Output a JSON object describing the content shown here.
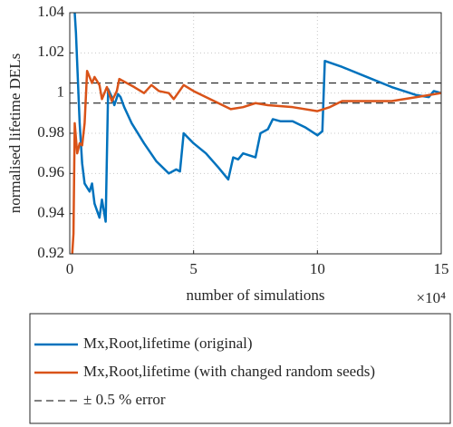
{
  "chart_data": {
    "type": "line",
    "xlabel": "number of simulations",
    "x_scale_label": "×10⁴",
    "ylabel": "normalised lifetime DELs",
    "xlim": [
      0,
      15
    ],
    "xticks": [
      0,
      5,
      10,
      15
    ],
    "ylim": [
      0.92,
      1.04
    ],
    "yticks": [
      0.92,
      0.94,
      0.96,
      0.98,
      1,
      1.02,
      1.04
    ],
    "grid": true,
    "legend": "below",
    "series": [
      {
        "name": "Mx,Root,lifetime (original)",
        "color": "#0072bd",
        "x": [
          0.2,
          0.25,
          0.4,
          0.5,
          0.6,
          0.8,
          0.9,
          1.0,
          1.2,
          1.3,
          1.45,
          1.55,
          1.7,
          1.8,
          1.95,
          2.05,
          2.2,
          2.5,
          3,
          3.5,
          4,
          4.3,
          4.45,
          4.6,
          5,
          5.5,
          6,
          6.4,
          6.6,
          6.8,
          7,
          7.5,
          7.7,
          8,
          8.2,
          8.5,
          9,
          9.5,
          10,
          10.2,
          10.3,
          11,
          12,
          13,
          14,
          14.5,
          14.7,
          15
        ],
        "values": [
          1.04,
          1.03,
          0.985,
          0.965,
          0.955,
          0.951,
          0.955,
          0.945,
          0.938,
          0.947,
          0.936,
          1.002,
          0.998,
          0.994,
          0.9995,
          0.998,
          0.993,
          0.985,
          0.975,
          0.966,
          0.96,
          0.962,
          0.961,
          0.98,
          0.975,
          0.97,
          0.963,
          0.957,
          0.968,
          0.967,
          0.97,
          0.968,
          0.98,
          0.982,
          0.987,
          0.986,
          0.986,
          0.983,
          0.979,
          0.981,
          1.016,
          1.013,
          1.008,
          1.003,
          0.999,
          0.998,
          1.001,
          1.0
        ]
      },
      {
        "name": "Mx,Root,lifetime (with changed random seeds)",
        "color": "#d95319",
        "x": [
          0.1,
          0.15,
          0.2,
          0.3,
          0.4,
          0.5,
          0.6,
          0.7,
          0.9,
          1.0,
          1.2,
          1.3,
          1.5,
          1.7,
          1.9,
          2,
          2.3,
          2.6,
          3,
          3.3,
          3.6,
          4,
          4.2,
          4.6,
          5,
          5.5,
          6,
          6.5,
          7,
          7.5,
          8,
          9,
          10,
          10.5,
          11,
          12,
          13,
          14,
          15
        ],
        "values": [
          0.92,
          0.93,
          0.985,
          0.97,
          0.975,
          0.974,
          0.985,
          1.011,
          1.005,
          1.008,
          1.004,
          0.997,
          1.003,
          0.996,
          1.001,
          1.007,
          1.005,
          1.003,
          1.0,
          1.004,
          1.001,
          1.0,
          0.997,
          1.004,
          1.001,
          0.998,
          0.995,
          0.992,
          0.993,
          0.995,
          0.994,
          0.993,
          0.991,
          0.993,
          0.996,
          0.996,
          0.996,
          0.998,
          1.0
        ]
      }
    ],
    "reference_lines": {
      "label": "± 0.5 % error",
      "values": [
        0.995,
        1.005
      ],
      "color": "#000000"
    }
  }
}
